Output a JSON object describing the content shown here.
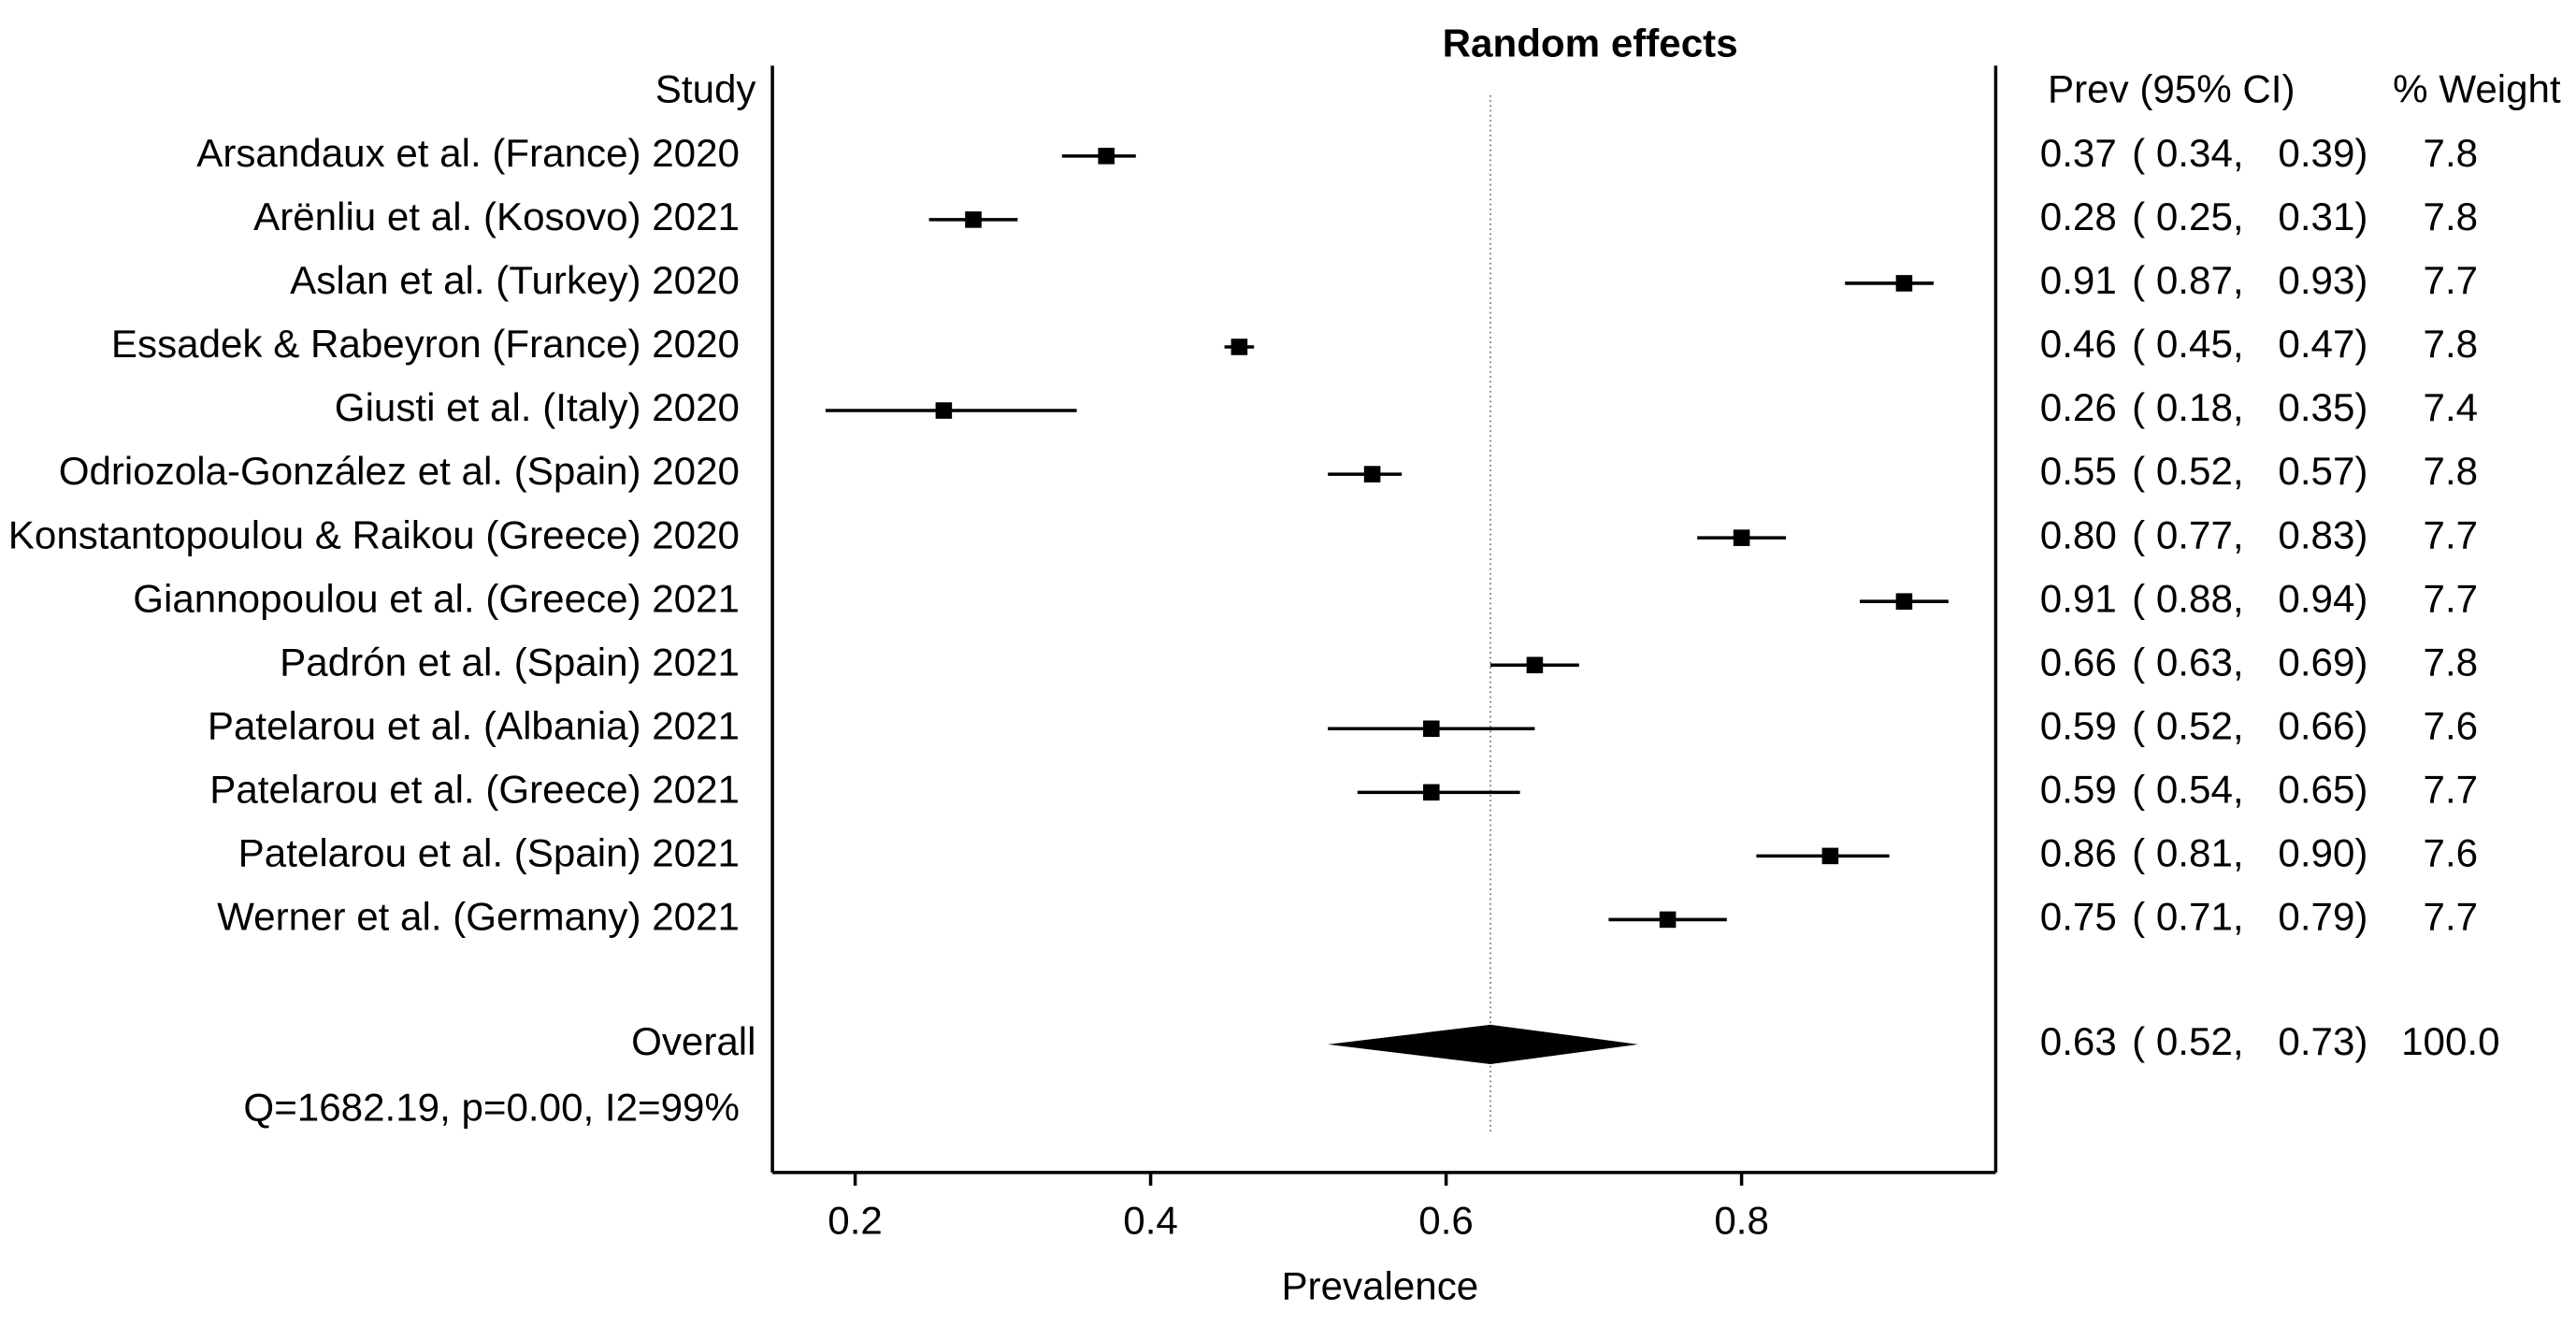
{
  "chart_data": {
    "type": "forest",
    "title": "Random effects",
    "study_header": "Study",
    "prev_header": "Prev (95% CI)",
    "weight_header": "% Weight",
    "xlabel": "Prevalence",
    "categories": [
      "Arsandaux et al. (France) 2020",
      "Arënliu et al. (Kosovo) 2021",
      "Aslan et al. (Turkey) 2020",
      "Essadek & Rabeyron (France) 2020",
      "Giusti et al. (Italy) 2020",
      "Odriozola-González et al. (Spain) 2020",
      "Konstantopoulou & Raikou (Greece) 2020",
      "Giannopoulou et al. (Greece) 2021",
      "Padrón et al. (Spain) 2021",
      "Patelarou et al. (Albania) 2021",
      "Patelarou et al. (Greece) 2021",
      "Patelarou et al. (Spain) 2021",
      "Werner et al. (Germany) 2021"
    ],
    "values": [
      0.37,
      0.28,
      0.91,
      0.46,
      0.26,
      0.55,
      0.8,
      0.91,
      0.66,
      0.59,
      0.59,
      0.86,
      0.75
    ],
    "value_labels": [
      "0.37",
      "0.28",
      "0.91",
      "0.46",
      "0.26",
      "0.55",
      "0.80",
      "0.91",
      "0.66",
      "0.59",
      "0.59",
      "0.86",
      "0.75"
    ],
    "ci_low": [
      0.34,
      0.25,
      0.87,
      0.45,
      0.18,
      0.52,
      0.77,
      0.88,
      0.63,
      0.52,
      0.54,
      0.81,
      0.71
    ],
    "ci_low_labels": [
      "( 0.34,",
      "( 0.25,",
      "( 0.87,",
      "( 0.45,",
      "( 0.18,",
      "( 0.52,",
      "( 0.77,",
      "( 0.88,",
      "( 0.63,",
      "( 0.52,",
      "( 0.54,",
      "( 0.81,",
      "( 0.71,"
    ],
    "ci_high": [
      0.39,
      0.31,
      0.93,
      0.47,
      0.35,
      0.57,
      0.83,
      0.94,
      0.69,
      0.66,
      0.65,
      0.9,
      0.79
    ],
    "ci_high_labels": [
      "0.39)",
      "0.31)",
      "0.93)",
      "0.47)",
      "0.35)",
      "0.57)",
      "0.83)",
      "0.94)",
      "0.69)",
      "0.66)",
      "0.65)",
      "0.90)",
      "0.79)"
    ],
    "weights": [
      7.8,
      7.8,
      7.7,
      7.8,
      7.4,
      7.8,
      7.7,
      7.7,
      7.8,
      7.6,
      7.7,
      7.6,
      7.7
    ],
    "overall": {
      "label": "Overall",
      "value": 0.63,
      "value_label": "0.63",
      "ci_low": 0.52,
      "ci_low_label": "( 0.52,",
      "ci_high": 0.73,
      "ci_high_label": "0.73)",
      "weight": 100,
      "weight_label": "100.0"
    },
    "stats": "Q=1682.19, p=0.00, I2=99%",
    "xlim": [
      0.144,
      0.972
    ],
    "xticks": [
      0.2,
      0.4,
      0.6,
      0.8
    ],
    "color": "#000000"
  }
}
